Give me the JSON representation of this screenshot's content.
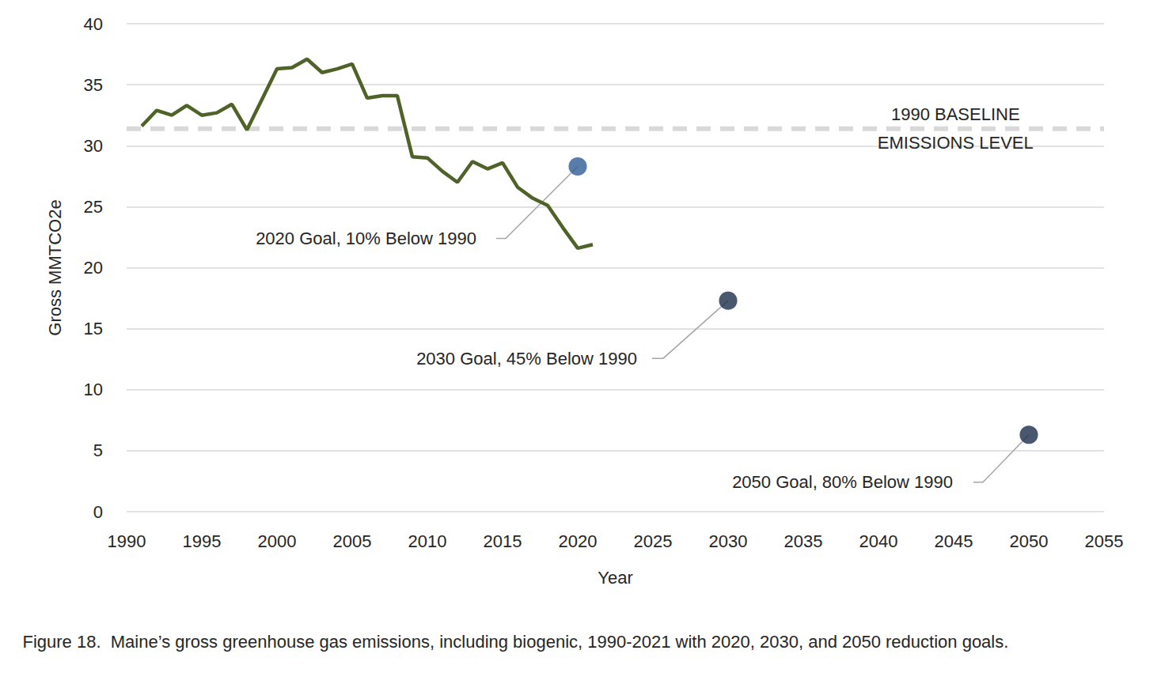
{
  "chart_data": {
    "type": "line",
    "title": "Figure 18.  Maine’s gross greenhouse gas emissions, including biogenic, 1990-2021 with 2020, 2030, and 2050 reduction goals.",
    "xlabel": "Year",
    "ylabel": "Gross MMTCO2e",
    "xlim": [
      1990,
      2055
    ],
    "xticks": [
      1990,
      1995,
      2000,
      2005,
      2010,
      2015,
      2020,
      2025,
      2030,
      2035,
      2040,
      2045,
      2050,
      2055
    ],
    "ylim": [
      0,
      40
    ],
    "yticks": [
      0,
      5,
      10,
      15,
      20,
      25,
      30,
      35,
      40
    ],
    "grid": true,
    "series": [
      {
        "type": "line",
        "color": "#4f6228",
        "line_style": "solid",
        "x": [
          1991,
          1992,
          1993,
          1994,
          1995,
          1996,
          1997,
          1998,
          1999,
          2000,
          2001,
          2002,
          2003,
          2004,
          2005,
          2006,
          2007,
          2008,
          2009,
          2010,
          2011,
          2012,
          2013,
          2014,
          2015,
          2016,
          2017,
          2018,
          2019,
          2020,
          2021
        ],
        "values": [
          31.6,
          32.9,
          32.5,
          33.3,
          32.5,
          32.7,
          33.4,
          31.3,
          33.8,
          36.3,
          36.4,
          37.1,
          36.0,
          36.3,
          36.7,
          33.9,
          34.1,
          34.1,
          29.1,
          29.0,
          27.9,
          27.0,
          28.7,
          28.1,
          28.6,
          26.6,
          25.7,
          25.1,
          23.3,
          21.6,
          21.9
        ]
      },
      {
        "type": "scatter",
        "marker": "circle",
        "x": [
          2020,
          2030,
          2050
        ],
        "values": [
          28.3,
          17.3,
          6.3
        ],
        "colors": [
          "#2e5c96",
          "#1c2e4a",
          "#1c2e4a"
        ],
        "labels": [
          "2020 Goal, 10% Below 1990",
          "2030 Goal, 45% Below 1990",
          "2050 Goal, 80% Below 1990"
        ]
      }
    ],
    "reference_line": {
      "value": 31.4,
      "label": "1990 BASELINE\nEMISSIONS LEVEL",
      "color": "#d9d9d9",
      "line_style": "dashed"
    }
  }
}
